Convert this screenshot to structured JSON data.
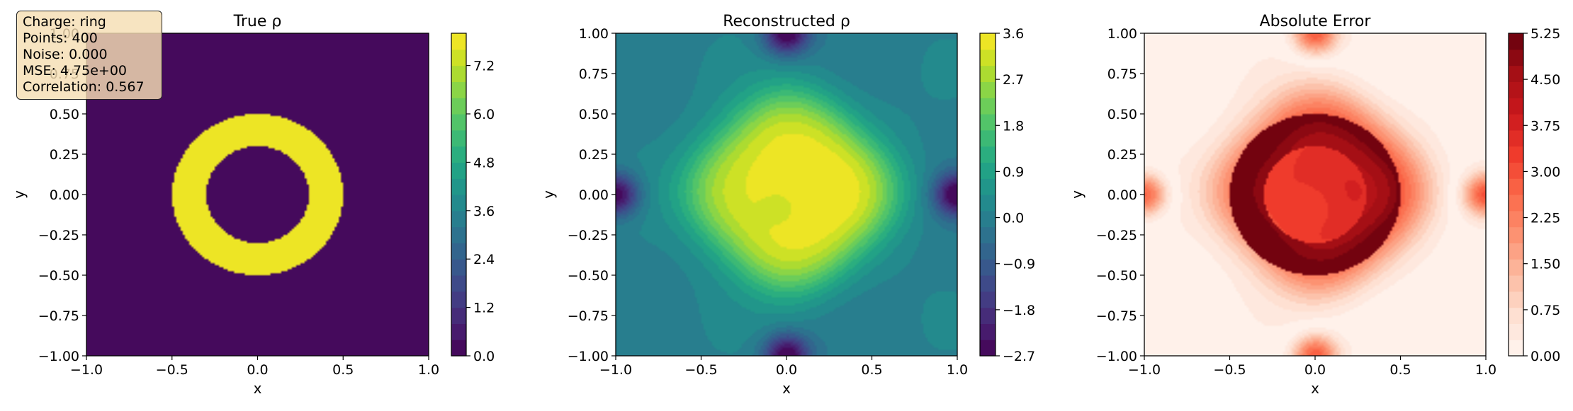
{
  "stats": {
    "charge": "Charge: ring",
    "points": "Points: 400",
    "noise": "Noise: 0.000",
    "mse": "MSE: 4.75e+00",
    "correlation": "Correlation: 0.567"
  },
  "chart_data": [
    {
      "type": "heatmap",
      "title": "True ρ",
      "xlabel": "x",
      "ylabel": "y",
      "xlim": [
        -1.0,
        1.0
      ],
      "ylim": [
        -1.0,
        1.0
      ],
      "x_ticks": [
        "−1.0",
        "−0.5",
        "0.0",
        "0.5",
        "1.0"
      ],
      "y_ticks": [
        "−1.00",
        "−0.75",
        "−0.50",
        "−0.25",
        "0.00",
        "0.25",
        "0.50",
        "0.75",
        "1.00"
      ],
      "colormap": "viridis",
      "colorbar_range": [
        0.0,
        8.0
      ],
      "colorbar_ticks": [
        "0.0",
        "1.2",
        "2.4",
        "3.6",
        "4.8",
        "6.0",
        "7.2"
      ],
      "field": {
        "shape": "ring",
        "inner_radius": 0.3,
        "outer_radius": 0.5,
        "value_inside": 8.0,
        "value_outside": 0.0
      }
    },
    {
      "type": "heatmap",
      "title": "Reconstructed ρ",
      "xlabel": "x",
      "ylabel": "y",
      "xlim": [
        -1.0,
        1.0
      ],
      "ylim": [
        -1.0,
        1.0
      ],
      "x_ticks": [
        "−1.0",
        "−0.5",
        "0.0",
        "0.5",
        "1.0"
      ],
      "y_ticks": [
        "−1.00",
        "−0.75",
        "−0.50",
        "−0.25",
        "0.00",
        "0.25",
        "0.50",
        "0.75",
        "1.00"
      ],
      "colormap": "viridis",
      "colorbar_range": [
        -2.7,
        3.6
      ],
      "colorbar_ticks": [
        "−2.7",
        "−1.8",
        "−0.9",
        "0.0",
        "0.9",
        "1.8",
        "2.7",
        "3.6"
      ],
      "field": {
        "shape": "rounded-diamond blob",
        "center_max": 3.6,
        "background": 0.0,
        "edge_min": -2.7
      }
    },
    {
      "type": "heatmap",
      "title": "Absolute Error",
      "xlabel": "x",
      "ylabel": "y",
      "xlim": [
        -1.0,
        1.0
      ],
      "ylim": [
        -1.0,
        1.0
      ],
      "x_ticks": [
        "−1.0",
        "−0.5",
        "0.0",
        "0.5",
        "1.0"
      ],
      "y_ticks": [
        "−1.00",
        "−0.75",
        "−0.50",
        "−0.25",
        "0.00",
        "0.25",
        "0.50",
        "0.75",
        "1.00"
      ],
      "colormap": "reds",
      "colorbar_range": [
        0.0,
        5.25
      ],
      "colorbar_ticks": [
        "0.00",
        "0.75",
        "1.50",
        "2.25",
        "3.00",
        "3.75",
        "4.50",
        "5.25"
      ],
      "field": {
        "shape": "ring error",
        "ring_max": 5.25,
        "inner_value": 3.8,
        "background": 0.3
      }
    }
  ]
}
